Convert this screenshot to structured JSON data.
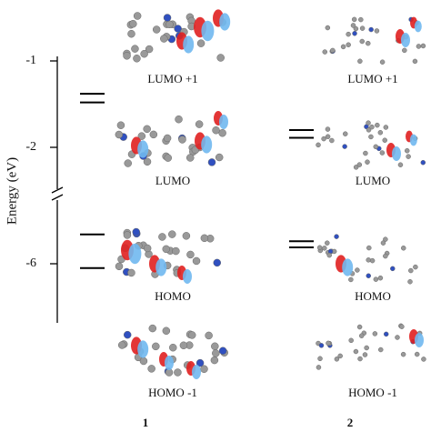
{
  "axis": {
    "label": "Energy (eV)",
    "ticks": [
      -1,
      -2,
      -6
    ]
  },
  "compounds": [
    {
      "label": "1",
      "orbital_labels": [
        "LUMO +1",
        "LUMO",
        "HOMO",
        "HOMO -1"
      ],
      "levels": [
        -1.38,
        -1.48,
        -5.66,
        -6.05
      ]
    },
    {
      "label": "2",
      "orbital_labels": [
        "LUMO +1",
        "LUMO",
        "HOMO",
        "HOMO -1"
      ],
      "levels": [
        -1.8,
        -1.89,
        -5.74,
        -5.81
      ]
    }
  ]
}
